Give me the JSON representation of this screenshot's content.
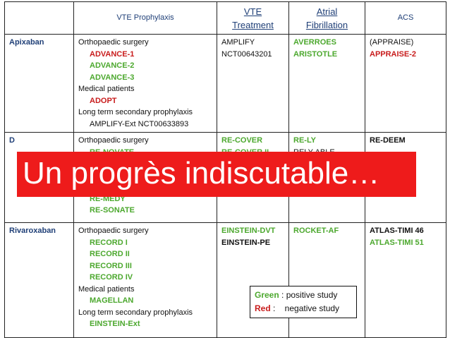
{
  "headers": {
    "vte_prophylaxis": "VTE Prophylaxis",
    "vte_treatment_l1": "VTE",
    "vte_treatment_l2": "Treatment",
    "af_l1": "Atrial",
    "af_l2": "Fibrillation",
    "acs": "ACS"
  },
  "rows": {
    "apixaban": {
      "name": "Apixaban",
      "prophylaxis": {
        "ortho": "Orthopaedic surgery",
        "advance1": "ADVANCE-1",
        "advance2": "ADVANCE-2",
        "advance3": "ADVANCE-3",
        "medical": "Medical patients",
        "adopt": "ADOPT",
        "longterm": "Long term secondary prophylaxis",
        "amplify_ext": "AMPLIFY-Ext NCT00633893"
      },
      "treatment": {
        "l1": "AMPLIFY",
        "l2": "NCT00643201"
      },
      "af": {
        "l1": "AVERROES",
        "l2": "ARISTOTLE"
      },
      "acs": {
        "l1": "(APPRAISE)",
        "l2": "APPRAISE-2"
      }
    },
    "dabigatran": {
      "name": "D",
      "prophylaxis": {
        "ortho": "Orthopaedic surgery",
        "hidden_trial": "RE-NOVATE",
        "remedy": "RE-MEDY",
        "resonate": "RE-SONATE"
      },
      "treatment": {
        "l1": "RE-COVER",
        "l2": "RE-COVER II"
      },
      "af": {
        "l1": "RE-LY",
        "l2": "RELY-ABLE"
      },
      "acs": {
        "l1": "RE-DEEM"
      }
    },
    "rivaroxaban": {
      "name": "Rivaroxaban",
      "prophylaxis": {
        "ortho": "Orthopaedic surgery",
        "record1": "RECORD I",
        "record2": "RECORD II",
        "record3": "RECORD III",
        "record4": "RECORD IV",
        "medical": "Medical patients",
        "magellan": "MAGELLAN",
        "longterm": "Long term secondary prophylaxis",
        "einstein_ext": "EINSTEIN-Ext"
      },
      "treatment": {
        "l1": "EINSTEIN-DVT",
        "l2": "EINSTEIN-PE"
      },
      "af": {
        "l1": "ROCKET-AF"
      },
      "acs": {
        "l1": "ATLAS-TIMI 46",
        "l2": "ATLAS-TIMI 51"
      }
    }
  },
  "banner": "Un progrès indiscutable…",
  "legend": {
    "green_word": "Green",
    "green_text": " : positive study",
    "red_word": "Red",
    "red_text": " :    negative study"
  },
  "colors": {
    "positive": "#4ca82e",
    "negative": "#c81c1c",
    "banner_bg": "#ee1b1b",
    "header_text": "#1f3f77"
  }
}
